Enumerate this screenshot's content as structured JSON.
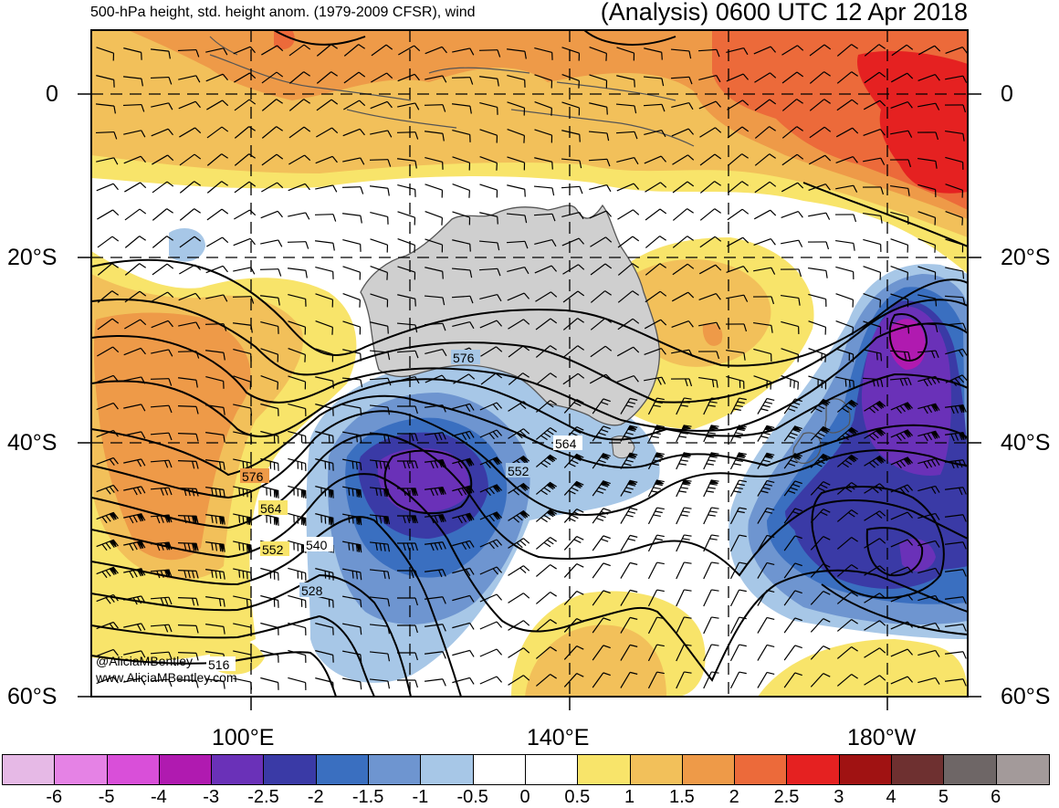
{
  "title": {
    "left": "500-hPa height, std. height anom. (1979-2009 CFSR), wind",
    "right": "(Analysis) 0600 UTC 12 Apr 2018"
  },
  "map": {
    "projection": "cylindrical",
    "lon_range_deg_e": [
      80,
      190
    ],
    "lat_range": [
      6,
      -60
    ],
    "lat_labels": [
      "0",
      "20°S",
      "40°S",
      "60°S"
    ],
    "lon_labels": [
      "100°E",
      "140°E",
      "180°W"
    ],
    "land_color": "#cfcfcf",
    "coast_color": "#555555",
    "contour_labels": [
      "576",
      "564",
      "552",
      "576",
      "564",
      "552",
      "540",
      "528",
      "516"
    ]
  },
  "credit": {
    "twitter": "@AliciaMBentley",
    "website": "www.AliciaMBentley.com"
  },
  "colorbar": {
    "colors": [
      "#e6b9e6",
      "#e582e5",
      "#d94fd9",
      "#b01ab0",
      "#6a31b8",
      "#3a3aa6",
      "#3a6fc0",
      "#6e95d0",
      "#a7c7e7",
      "#ffffff",
      "#ffffff",
      "#f8e46a",
      "#f2c05a",
      "#ee9a48",
      "#ec6a3a",
      "#e52121",
      "#a01212",
      "#6e3030",
      "#6e6666",
      "#a39a9a"
    ],
    "ticks": [
      "-6",
      "-5",
      "-4",
      "-3",
      "-2.5",
      "-2",
      "-1.5",
      "-1",
      "-0.5",
      "0",
      "0.5",
      "1",
      "1.5",
      "2",
      "2.5",
      "3",
      "4",
      "5",
      "6"
    ]
  }
}
